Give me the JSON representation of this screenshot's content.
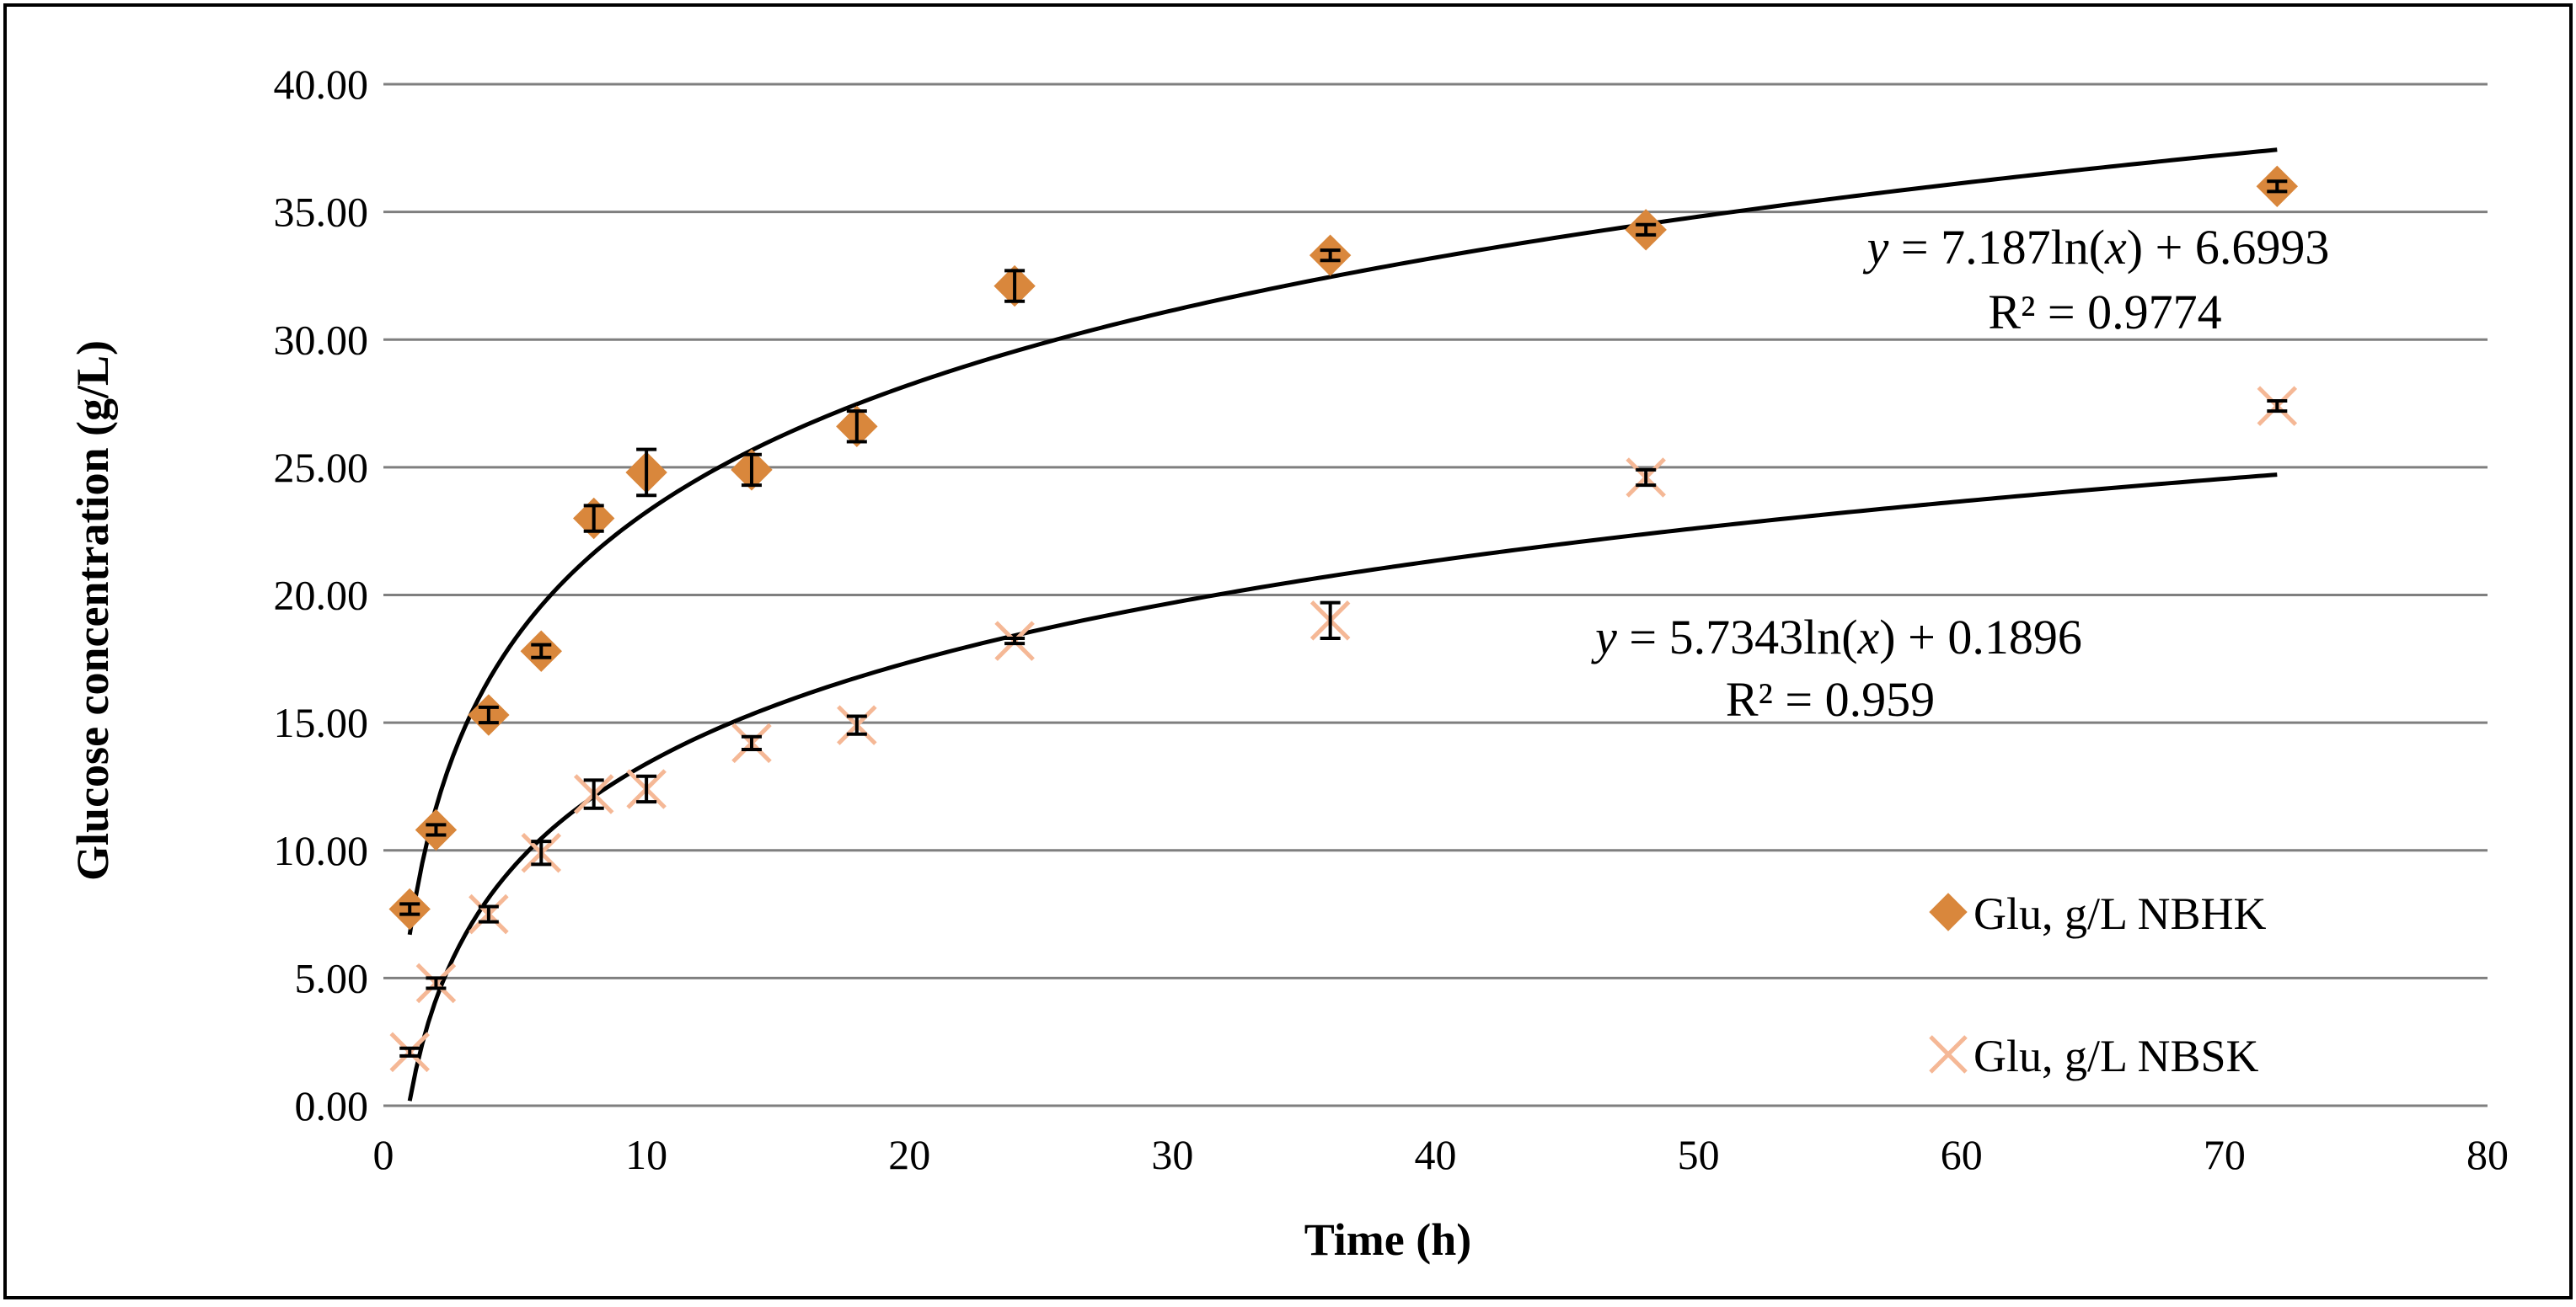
{
  "chart_data": {
    "type": "scatter",
    "title": "",
    "xlabel": "Time (h)",
    "ylabel": "Glucose concentration (g/L)",
    "xlim": [
      0,
      80
    ],
    "ylim": [
      0,
      40
    ],
    "x_ticks": [
      "0",
      "10",
      "20",
      "30",
      "40",
      "50",
      "60",
      "70",
      "80"
    ],
    "y_ticks": [
      "0.00",
      "5.00",
      "10.00",
      "15.00",
      "20.00",
      "25.00",
      "30.00",
      "35.00",
      "40.00"
    ],
    "grid": "horizontal",
    "legend_position": "right",
    "series": [
      {
        "name": "Glu, g/L NBHK",
        "marker": "diamond",
        "color": "#D9873C",
        "x": [
          1,
          2,
          4,
          6,
          8,
          10,
          14,
          18,
          24,
          36,
          48,
          72
        ],
        "y": [
          7.7,
          10.8,
          15.3,
          17.8,
          23.0,
          24.8,
          24.9,
          26.6,
          32.1,
          33.3,
          34.3,
          36.0
        ],
        "error": [
          0.2,
          0.2,
          0.3,
          0.25,
          0.5,
          0.9,
          0.6,
          0.6,
          0.6,
          0.2,
          0.2,
          0.2
        ],
        "trendline": {
          "type": "log",
          "a": 7.187,
          "b": 6.6993,
          "equation": "y = 7.187ln(x) + 6.6993",
          "r2": "R² = 0.9774"
        }
      },
      {
        "name": "Glu, g/L NBSK",
        "marker": "x",
        "color": "#F5B896",
        "x": [
          1,
          2,
          4,
          6,
          8,
          10,
          14,
          18,
          24,
          36,
          48,
          72
        ],
        "y": [
          2.1,
          4.8,
          7.5,
          9.9,
          12.2,
          12.4,
          14.2,
          14.9,
          18.2,
          19.0,
          24.6,
          27.4
        ],
        "error": [
          0.15,
          0.2,
          0.3,
          0.45,
          0.55,
          0.5,
          0.25,
          0.35,
          0.1,
          0.7,
          0.3,
          0.2
        ],
        "trendline": {
          "type": "log",
          "a": 5.7343,
          "b": 0.1896,
          "equation": "y = 5.7343ln(x) + 0.1896",
          "r2": "R² = 0.959"
        }
      }
    ]
  }
}
